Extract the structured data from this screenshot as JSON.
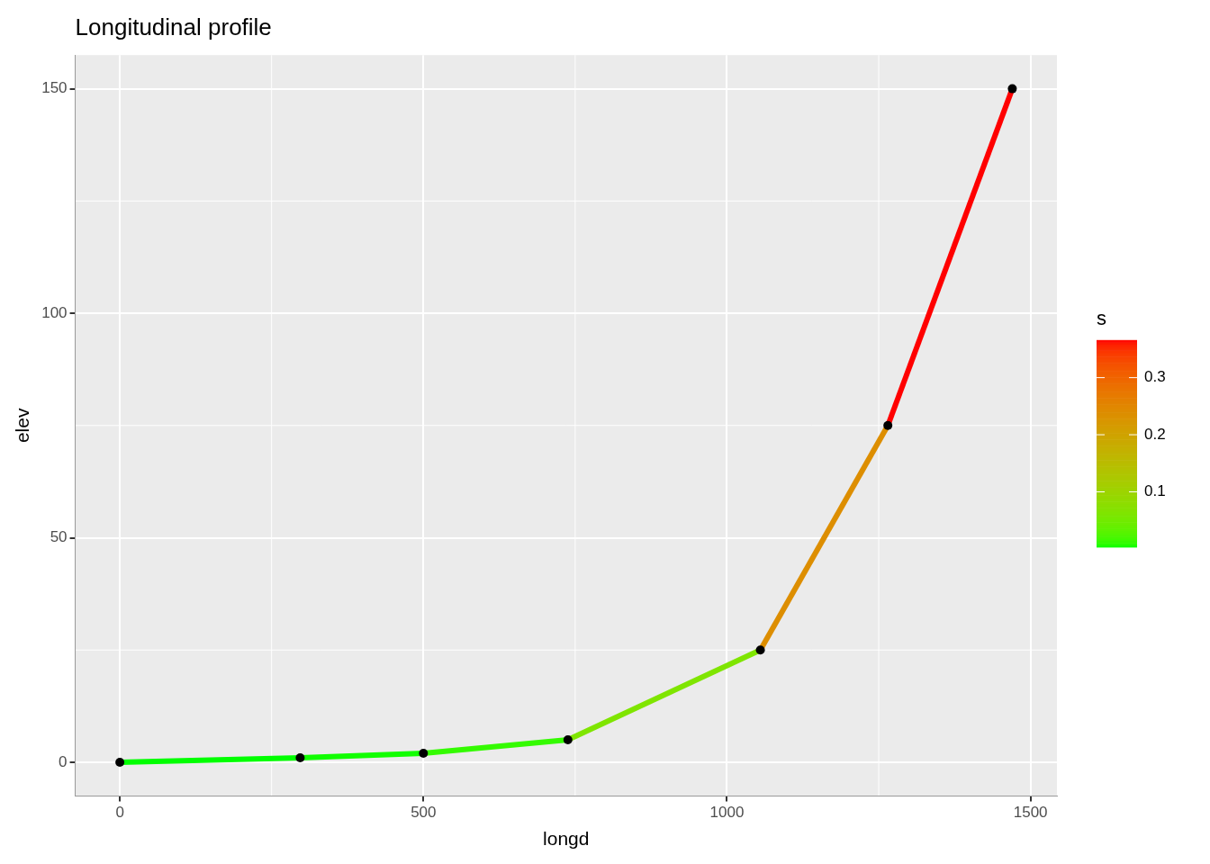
{
  "chart_data": {
    "type": "line",
    "title": "Longitudinal profile",
    "x_label": "longd",
    "y_label": "elev",
    "x": [
      0,
      297,
      500,
      738,
      1055,
      1265,
      1470
    ],
    "values": [
      0,
      1,
      2,
      5,
      25,
      75,
      150
    ],
    "s": [
      0.0034,
      0.0049,
      0.0126,
      0.0631,
      0.2381,
      0.3659
    ],
    "marker": "circle",
    "color": "#000000",
    "xlim": [
      -73.5,
      1543.5
    ],
    "xticks": [
      0,
      500,
      1000,
      1500
    ],
    "ylim": [
      -7.5,
      157.5
    ],
    "yticks": [
      0,
      50,
      100,
      150
    ],
    "grid": true,
    "colorbar": {
      "title": "s",
      "range": [
        0.0034,
        0.3659
      ],
      "ticks": [
        0.1,
        0.2,
        0.3
      ],
      "colors": [
        "#00ff00",
        "#ff0000"
      ]
    }
  }
}
